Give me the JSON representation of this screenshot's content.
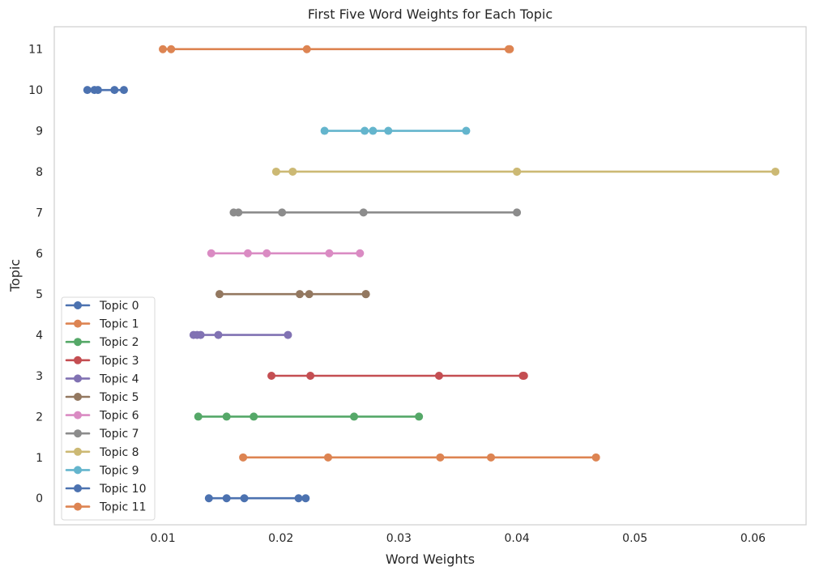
{
  "chart_data": {
    "type": "line",
    "title": "First Five Word Weights for Each Topic",
    "xlabel": "Word Weights",
    "ylabel": "Topic",
    "xlim": [
      0.0008,
      0.0645
    ],
    "ylim": [
      -0.65,
      11.55
    ],
    "x_ticks": [
      0.01,
      0.02,
      0.03,
      0.04,
      0.05,
      0.06
    ],
    "x_tick_labels": [
      "0.01",
      "0.02",
      "0.03",
      "0.04",
      "0.05",
      "0.06"
    ],
    "y_ticks": [
      0,
      1,
      2,
      3,
      4,
      5,
      6,
      7,
      8,
      9,
      10,
      11
    ],
    "y_tick_labels": [
      "0",
      "1",
      "2",
      "3",
      "4",
      "5",
      "6",
      "7",
      "8",
      "9",
      "10",
      "11"
    ],
    "grid": false,
    "legend_position": "lower-left",
    "series": [
      {
        "name": "Topic 0",
        "color": "#4c72b0",
        "y": 0,
        "values": [
          0.0139,
          0.0154,
          0.0169,
          0.0215,
          0.0221
        ]
      },
      {
        "name": "Topic 1",
        "color": "#dd8452",
        "y": 1,
        "values": [
          0.0168,
          0.024,
          0.0335,
          0.0378,
          0.0467
        ]
      },
      {
        "name": "Topic 2",
        "color": "#55a868",
        "y": 2,
        "values": [
          0.013,
          0.0154,
          0.0177,
          0.0262,
          0.0317
        ]
      },
      {
        "name": "Topic 3",
        "color": "#c44e52",
        "y": 3,
        "values": [
          0.0192,
          0.0225,
          0.0334,
          0.0405,
          0.0406
        ]
      },
      {
        "name": "Topic 4",
        "color": "#8172b3",
        "y": 4,
        "values": [
          0.0126,
          0.0129,
          0.0132,
          0.0147,
          0.0206
        ]
      },
      {
        "name": "Topic 5",
        "color": "#937860",
        "y": 5,
        "values": [
          0.0148,
          0.0216,
          0.0224,
          0.0272,
          0.0272
        ]
      },
      {
        "name": "Topic 6",
        "color": "#da8bc3",
        "y": 6,
        "values": [
          0.0141,
          0.0172,
          0.0188,
          0.0241,
          0.0267
        ]
      },
      {
        "name": "Topic 7",
        "color": "#8c8c8c",
        "y": 7,
        "values": [
          0.016,
          0.0164,
          0.0201,
          0.027,
          0.04
        ]
      },
      {
        "name": "Topic 8",
        "color": "#ccb974",
        "y": 8,
        "values": [
          0.0196,
          0.021,
          0.04,
          0.04,
          0.0619
        ]
      },
      {
        "name": "Topic 9",
        "color": "#64b5cd",
        "y": 9,
        "values": [
          0.0237,
          0.0271,
          0.0278,
          0.0291,
          0.0357
        ]
      },
      {
        "name": "Topic 10",
        "color": "#4c72b0",
        "y": 10,
        "values": [
          0.0036,
          0.0042,
          0.0045,
          0.0059,
          0.0067
        ]
      },
      {
        "name": "Topic 11",
        "color": "#dd8452",
        "y": 11,
        "values": [
          0.01,
          0.0107,
          0.0222,
          0.0393,
          0.0394
        ]
      }
    ]
  }
}
